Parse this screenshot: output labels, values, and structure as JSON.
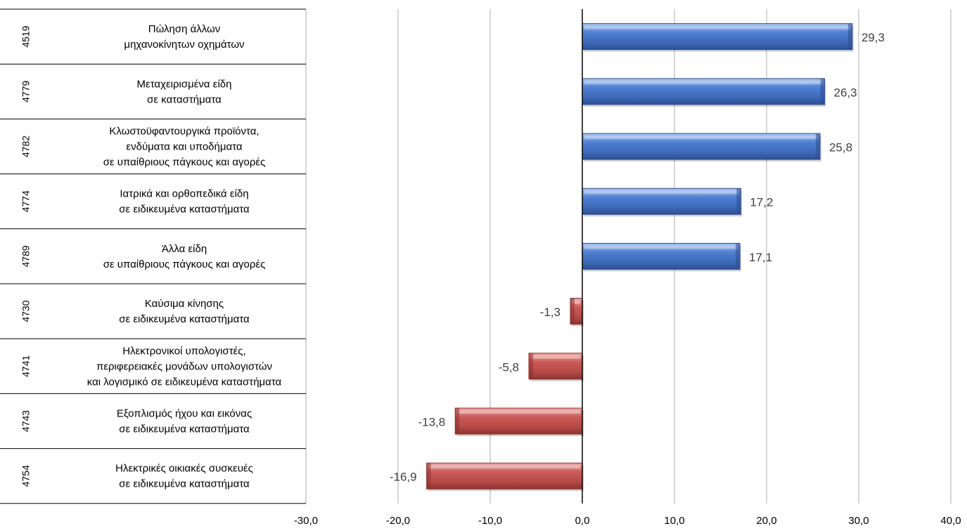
{
  "chart_data": {
    "type": "bar",
    "orientation": "horizontal",
    "categories": [
      {
        "code": "4519",
        "label": [
          "Πώληση άλλων",
          "μηχανοκίνητων οχημάτων"
        ]
      },
      {
        "code": "4779",
        "label": [
          "Μεταχειρισμένα είδη",
          "σε καταστήματα"
        ]
      },
      {
        "code": "4782",
        "label": [
          "Κλωστοϋφαντουργικά προϊόντα,",
          "ενδύματα και υποδήματα",
          "σε υπαίθριους πάγκους και αγορές"
        ]
      },
      {
        "code": "4774",
        "label": [
          "Ιατρικά και ορθοπεδικά είδη",
          "σε ειδικευμένα καταστήματα"
        ]
      },
      {
        "code": "4789",
        "label": [
          "Άλλα είδη",
          "σε υπαίθριους πάγκους και αγορές"
        ]
      },
      {
        "code": "4730",
        "label": [
          "Καύσιμα κίνησης",
          "σε ειδικευμένα καταστήματα"
        ]
      },
      {
        "code": "4741",
        "label": [
          "Ηλεκτρονικοί υπολογιστές,",
          "περιφερειακές μονάδων υπολογιστών",
          "και λογισμικό σε ειδικευμένα καταστήματα"
        ]
      },
      {
        "code": "4743",
        "label": [
          "Εξοπλισμός ήχου και εικόνας",
          "σε ειδικευμένα καταστήματα"
        ]
      },
      {
        "code": "4754",
        "label": [
          "Ηλεκτρικές οικιακές συσκευές",
          "σε ειδικευμένα καταστήματα"
        ]
      }
    ],
    "values": [
      29.3,
      26.3,
      25.8,
      17.2,
      17.1,
      -1.3,
      -5.8,
      -13.8,
      -16.9
    ],
    "value_labels": [
      "29,3",
      "26,3",
      "25,8",
      "17,2",
      "17,1",
      "-1,3",
      "-5,8",
      "-13,8",
      "-16,9"
    ],
    "xlim": [
      -30,
      40
    ],
    "xticks": [
      -30,
      -20,
      -10,
      0,
      10,
      20,
      30,
      40
    ],
    "xtick_labels": [
      "-30,0",
      "-20,0",
      "-10,0",
      "0,0",
      "10,0",
      "20,0",
      "30,0",
      "40,0"
    ],
    "grid": "vertical",
    "colors": {
      "positive": "#4472c4",
      "positive_light": "#8eb0ea",
      "positive_dark": "#2b4f91",
      "negative": "#c0504d",
      "negative_light": "#e29896",
      "negative_dark": "#8c3230",
      "grid": "#bfbfbf",
      "zero_axis": "#000000",
      "label_text": "#404040"
    }
  }
}
